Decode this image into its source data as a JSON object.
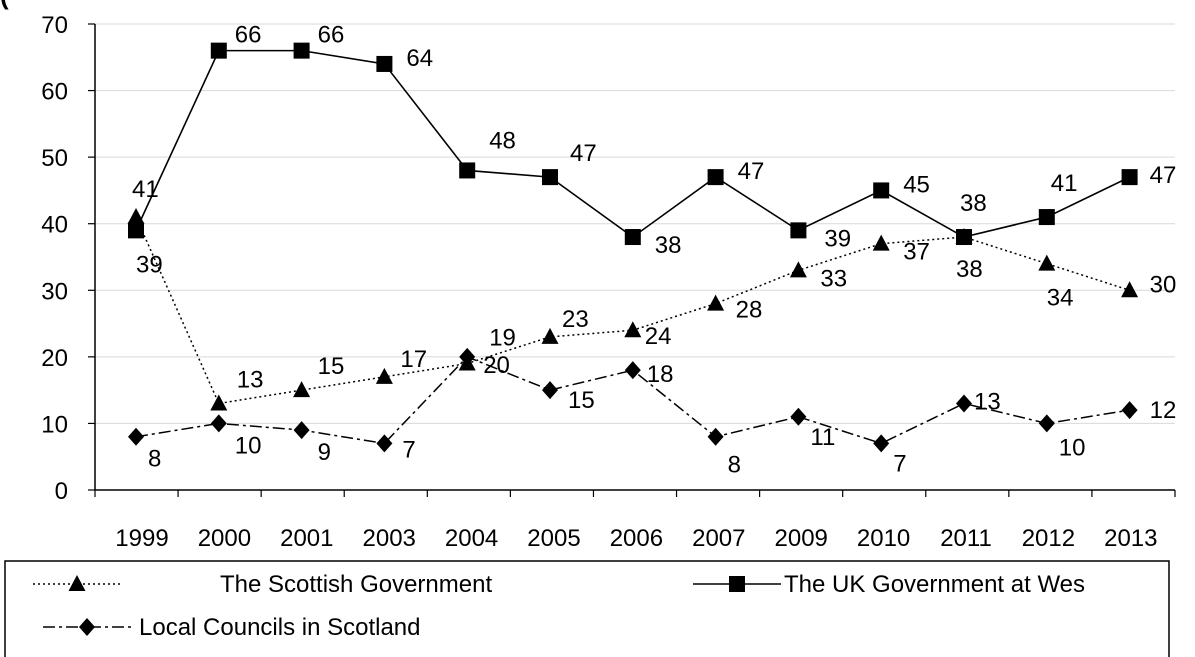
{
  "title": "(",
  "chart_data": {
    "type": "line",
    "ylim": [
      0,
      70
    ],
    "yticks": [
      0,
      10,
      20,
      30,
      40,
      50,
      60,
      70
    ],
    "x_tick_labels": [
      "1999",
      "2000",
      "2001",
      "2003",
      "2004",
      "2005",
      "2006",
      "2007",
      "2009",
      "2010",
      "2011",
      "2012",
      "2013"
    ],
    "points_count": 13,
    "grid": "horizontal",
    "legend_position": "bottom",
    "series": [
      {
        "name": "The Scottish Government",
        "marker": "triangle",
        "line": "dotted",
        "values": [
          41,
          13,
          15,
          17,
          19,
          23,
          24,
          28,
          33,
          37,
          38,
          34,
          30
        ]
      },
      {
        "name": "The UK Government at Wes",
        "marker": "square",
        "line": "solid",
        "values": [
          39,
          66,
          66,
          64,
          48,
          47,
          38,
          47,
          39,
          45,
          38,
          41,
          47
        ]
      },
      {
        "name": "Local Councils in Scotland",
        "marker": "diamond",
        "line": "dashdot",
        "values": [
          8,
          10,
          9,
          7,
          20,
          15,
          18,
          8,
          11,
          7,
          13,
          10,
          12
        ]
      }
    ]
  }
}
